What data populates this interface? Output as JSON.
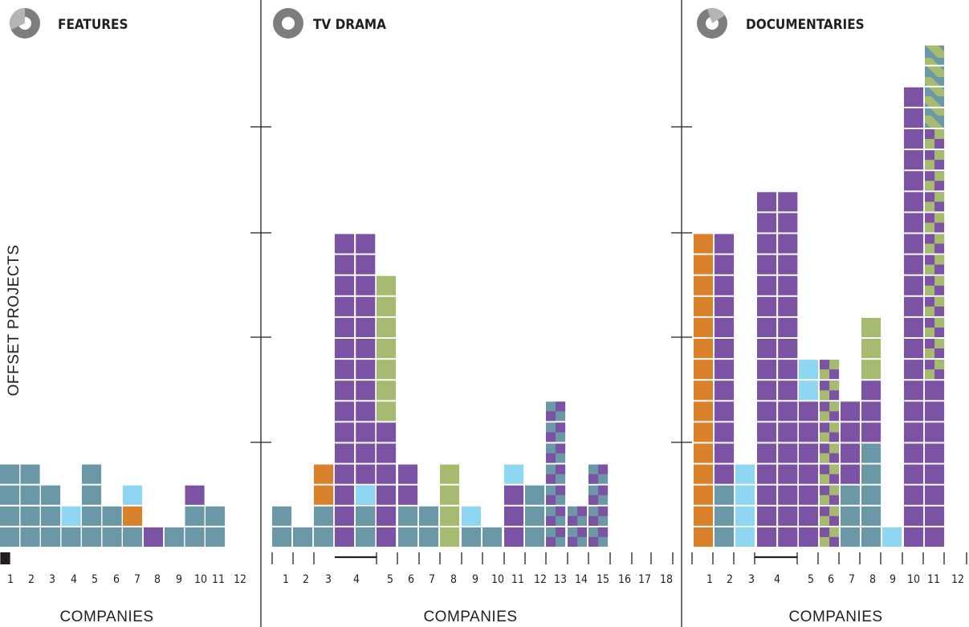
{
  "colors": {
    "teal": "#6a98a6",
    "purple": "#7b52a4",
    "orange": "#d9822b",
    "lightblue": "#8ed6f2",
    "green": "#a6ba70",
    "axis": "#231f20"
  },
  "icon": "disc-pie-icon",
  "y_axis_label": "OFFSET PROJECTS",
  "chart_data": [
    {
      "type": "bar",
      "title": "FEATURES",
      "xlabel": "COMPANIES",
      "ylabel": "OFFSET PROJECTS",
      "categories": [
        "1",
        "2",
        "3",
        "4",
        "5",
        "6",
        "7",
        "8",
        "9",
        "10",
        "11",
        "12"
      ],
      "stacks": [
        [
          "teal",
          "teal",
          "teal",
          "teal"
        ],
        [
          "teal",
          "teal",
          "teal",
          "teal"
        ],
        [
          "teal",
          "teal",
          "teal"
        ],
        [
          "teal",
          "lightblue"
        ],
        [
          "teal",
          "teal",
          "teal",
          "teal"
        ],
        [
          "teal",
          "teal"
        ],
        [
          "teal",
          "orange",
          "lightblue"
        ],
        [
          "purple"
        ],
        [
          "teal"
        ],
        [
          "teal",
          "teal",
          "purple"
        ],
        [
          "teal",
          "teal"
        ],
        []
      ]
    },
    {
      "type": "bar",
      "title": "TV DRAMA",
      "xlabel": "COMPANIES",
      "ylabel": "",
      "categories": [
        "1",
        "2",
        "3",
        "4",
        "5",
        "6",
        "7",
        "8",
        "9",
        "10",
        "11",
        "12",
        "13",
        "14",
        "15",
        "16",
        "17",
        "18"
      ],
      "stacks": [
        [
          "teal",
          "teal"
        ],
        [
          "teal"
        ],
        [
          "teal",
          "teal",
          "orange",
          "orange"
        ],
        [
          "purple",
          "purple",
          "purple",
          "purple",
          "purple",
          "purple",
          "purple",
          "purple",
          "purple",
          "purple",
          "purple",
          "purple",
          "purple",
          "purple",
          "purple"
        ],
        [
          "teal",
          "teal",
          "lightblue"
        ],
        [
          "purple",
          "purple",
          "purple",
          "purple",
          "purple",
          "purple",
          "green",
          "green",
          "green",
          "green",
          "green",
          "green",
          "green"
        ],
        [
          "teal",
          "teal",
          "purple",
          "purple"
        ],
        [
          "teal",
          "teal"
        ],
        [
          "green",
          "green",
          "green",
          "green"
        ],
        [
          "teal",
          "lightblue"
        ],
        [
          "teal"
        ],
        [
          "purple",
          "purple",
          "purple",
          "lightblue"
        ],
        [
          "teal",
          "teal",
          "teal"
        ],
        [
          "teal/purple",
          "teal/purple",
          "teal/purple",
          "teal/purple",
          "teal/purple",
          "teal/purple",
          "teal/purple"
        ],
        [
          "teal/purple",
          "teal/purple"
        ],
        [
          "teal/purple",
          "teal/purple",
          "teal/purple",
          "teal/purple"
        ],
        [],
        []
      ]
    },
    {
      "type": "bar",
      "title": "DOCUMENTARIES",
      "xlabel": "COMPANIES",
      "ylabel": "",
      "categories": [
        "1",
        "2",
        "3",
        "4",
        "5",
        "6",
        "7",
        "8",
        "9",
        "10",
        "11",
        "12"
      ],
      "stacks": [
        [
          "orange",
          "orange",
          "orange",
          "orange",
          "orange",
          "orange",
          "orange",
          "orange",
          "orange",
          "orange",
          "orange",
          "orange",
          "orange",
          "orange",
          "orange"
        ],
        [
          "teal",
          "teal",
          "teal",
          "purple",
          "purple",
          "purple",
          "purple",
          "purple",
          "purple",
          "purple",
          "purple",
          "purple",
          "purple",
          "purple",
          "purple"
        ],
        [
          "lightblue",
          "lightblue",
          "lightblue",
          "lightblue"
        ],
        [
          "purple",
          "purple",
          "purple",
          "purple",
          "purple",
          "purple",
          "purple",
          "purple",
          "purple",
          "purple",
          "purple",
          "purple",
          "purple",
          "purple",
          "purple",
          "purple",
          "purple"
        ],
        [
          "purple",
          "purple",
          "purple",
          "purple",
          "purple",
          "purple",
          "purple",
          "lightblue",
          "lightblue"
        ],
        [
          "purple/green",
          "purple/green",
          "purple/green",
          "purple/green",
          "purple/green",
          "purple/green",
          "purple/green",
          "purple/green",
          "purple/green"
        ],
        [
          "teal",
          "teal",
          "teal",
          "purple",
          "purple",
          "purple",
          "purple"
        ],
        [
          "teal",
          "teal",
          "teal",
          "teal",
          "teal",
          "purple",
          "purple",
          "purple",
          "green",
          "green",
          "green"
        ],
        [
          "lightblue"
        ],
        [
          "purple",
          "purple",
          "purple",
          "purple",
          "purple",
          "purple",
          "purple",
          "purple",
          "purple",
          "purple",
          "purple",
          "purple",
          "purple",
          "purple",
          "purple",
          "purple",
          "purple",
          "purple",
          "purple",
          "purple",
          "purple",
          "purple"
        ],
        [
          "purple",
          "purple",
          "purple",
          "purple",
          "purple",
          "purple",
          "purple",
          "purple",
          "purple/green",
          "purple/green",
          "purple/green",
          "purple/green",
          "purple/green",
          "purple/green",
          "purple/green",
          "purple/green",
          "purple/green",
          "purple/green",
          "purple/green",
          "purple/green",
          "green/teal",
          "green/teal",
          "green/teal",
          "green/teal"
        ],
        []
      ]
    }
  ]
}
